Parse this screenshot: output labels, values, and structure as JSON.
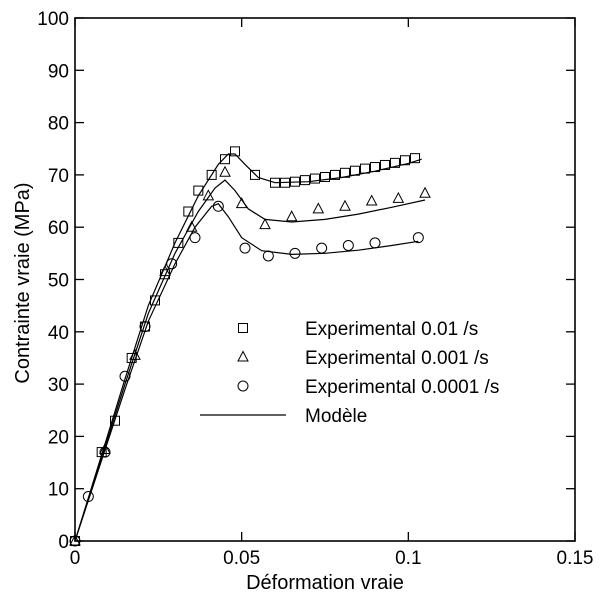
{
  "chart_data": {
    "type": "scatter",
    "title": "",
    "xlabel": "Déformation vraie",
    "ylabel": "Contrainte vraie (MPa)",
    "xlim": [
      0,
      0.15
    ],
    "ylim": [
      0,
      100
    ],
    "x_ticks": [
      0,
      0.05,
      0.1,
      0.15
    ],
    "x_tick_labels": [
      "0",
      "0.05",
      "0.1",
      "0.15"
    ],
    "y_ticks": [
      0,
      10,
      20,
      30,
      40,
      50,
      60,
      70,
      80,
      90,
      100
    ],
    "y_tick_labels": [
      "0",
      "10",
      "20",
      "30",
      "40",
      "50",
      "60",
      "70",
      "80",
      "90",
      "100"
    ],
    "grid": false,
    "legend_position": "center-right",
    "series": [
      {
        "name": "Experimental 0.01 /s",
        "marker": "square",
        "x": [
          0,
          0.008,
          0.012,
          0.017,
          0.021,
          0.024,
          0.027,
          0.031,
          0.034,
          0.037,
          0.041,
          0.045,
          0.048,
          0.054,
          0.06,
          0.063,
          0.066,
          0.069,
          0.072,
          0.075,
          0.078,
          0.081,
          0.084,
          0.087,
          0.09,
          0.093,
          0.096,
          0.099,
          0.102
        ],
        "y": [
          0,
          17,
          23,
          35,
          41,
          46,
          51,
          57,
          63,
          67,
          70,
          73,
          74.5,
          70,
          68.5,
          68.5,
          68.7,
          69,
          69.3,
          69.6,
          70,
          70.4,
          70.8,
          71.2,
          71.5,
          71.9,
          72.3,
          72.8,
          73.2
        ]
      },
      {
        "name": "Experimental 0.001 /s",
        "marker": "triangle",
        "x": [
          0,
          0.009,
          0.018,
          0.027,
          0.035,
          0.04,
          0.045,
          0.05,
          0.057,
          0.065,
          0.073,
          0.081,
          0.089,
          0.097,
          0.105
        ],
        "y": [
          0,
          17.5,
          35.5,
          51.5,
          60,
          66,
          70.5,
          64.5,
          60.5,
          62,
          63.5,
          64,
          65,
          65.5,
          66.5
        ]
      },
      {
        "name": "Experimental 0.0001 /s",
        "marker": "circle",
        "x": [
          0,
          0.004,
          0.009,
          0.015,
          0.021,
          0.029,
          0.036,
          0.043,
          0.051,
          0.058,
          0.066,
          0.074,
          0.082,
          0.09,
          0.103
        ],
        "y": [
          0,
          8.5,
          17,
          31.5,
          41,
          53,
          58,
          64,
          56,
          54.5,
          55,
          56,
          56.5,
          57,
          58
        ]
      },
      {
        "name": "Modèle",
        "marker": "line",
        "lines": [
          {
            "x": [
              0,
              0.008,
              0.015,
              0.022,
              0.03,
              0.037,
              0.043,
              0.046,
              0.048,
              0.051,
              0.055,
              0.06,
              0.07,
              0.08,
              0.09,
              0.1,
              0.104
            ],
            "y": [
              0,
              16.5,
              31,
              45,
              57,
              66,
              72,
              74,
              74,
              72,
              69.5,
              68.5,
              68.7,
              69.5,
              70.7,
              72.2,
              73
            ]
          },
          {
            "x": [
              0,
              0.008,
              0.015,
              0.022,
              0.03,
              0.037,
              0.042,
              0.045,
              0.048,
              0.052,
              0.057,
              0.065,
              0.075,
              0.085,
              0.095,
              0.105
            ],
            "y": [
              0,
              16,
              30,
              43.5,
              55,
              63,
              67.5,
              69,
              67,
              63.5,
              61.5,
              61,
              61.5,
              62.5,
              63.8,
              65.2
            ]
          },
          {
            "x": [
              0,
              0.008,
              0.015,
              0.022,
              0.03,
              0.036,
              0.041,
              0.043,
              0.046,
              0.05,
              0.056,
              0.065,
              0.075,
              0.085,
              0.095,
              0.103
            ],
            "y": [
              0,
              15.5,
              29,
              42,
              53,
              60,
              64,
              64.5,
              62,
              58,
              55.5,
              54.8,
              55,
              55.6,
              56.5,
              57.3
            ]
          }
        ]
      }
    ],
    "colors": {
      "axis": "#000000",
      "marker": "#000000",
      "model_line": "#000000"
    }
  }
}
